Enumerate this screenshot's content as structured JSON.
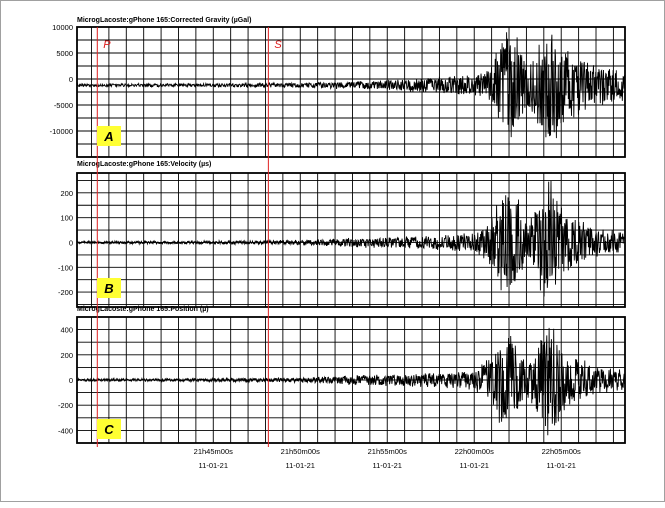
{
  "chart_data": [
    {
      "type": "line",
      "title": "MicrogLacoste:gPhone 165:Corrected Gravity (µGal)",
      "ylim": [
        -15000,
        10000
      ],
      "yticks": [
        10000,
        5000,
        0,
        -5000,
        -10000
      ],
      "ytick_labels": [
        "10000",
        "5000",
        "0",
        "-5000",
        "-10000"
      ],
      "panel_label": "A",
      "baseline": -1200,
      "noise_amplitude": 200,
      "series": [
        {
          "envelope": [
            [
              "21:37:10",
              250
            ],
            [
              "21:44:00",
              300
            ],
            [
              "21:50:00",
              500
            ],
            [
              "21:53:00",
              700
            ],
            [
              "21:56:00",
              1200
            ],
            [
              "21:58:00",
              1700
            ],
            [
              "22:00:00",
              2000
            ],
            [
              "22:01:00",
              3500
            ],
            [
              "22:01:30",
              9000
            ],
            [
              "22:02:00",
              12000
            ],
            [
              "22:02:30",
              10000
            ],
            [
              "22:03:00",
              4500
            ],
            [
              "22:03:30",
              7000
            ],
            [
              "22:04:00",
              11000
            ],
            [
              "22:04:30",
              12500
            ],
            [
              "22:05:00",
              9000
            ],
            [
              "22:05:30",
              7500
            ],
            [
              "22:06:00",
              6000
            ],
            [
              "22:07:00",
              4000
            ],
            [
              "22:08:00",
              3500
            ],
            [
              "22:08:30",
              3000
            ]
          ]
        }
      ]
    },
    {
      "type": "line",
      "title": "MicrogLacoste:gPhone 165:Velocity (µs)",
      "ylim": [
        -260,
        280
      ],
      "yticks": [
        200,
        100,
        0,
        -100,
        -200
      ],
      "ytick_labels": [
        "200",
        "100",
        "0",
        "-100",
        "-200"
      ],
      "panel_label": "B",
      "baseline": 0,
      "noise_amplitude": 3,
      "series": [
        {
          "envelope": [
            [
              "21:37:10",
              5
            ],
            [
              "21:44:00",
              6
            ],
            [
              "21:50:00",
              10
            ],
            [
              "21:53:00",
              20
            ],
            [
              "21:56:00",
              25
            ],
            [
              "21:58:00",
              30
            ],
            [
              "22:00:00",
              40
            ],
            [
              "22:01:00",
              100
            ],
            [
              "22:01:30",
              200
            ],
            [
              "22:02:00",
              240
            ],
            [
              "22:02:30",
              200
            ],
            [
              "22:03:00",
              80
            ],
            [
              "22:03:30",
              150
            ],
            [
              "22:04:00",
              240
            ],
            [
              "22:04:30",
              260
            ],
            [
              "22:05:00",
              150
            ],
            [
              "22:05:30",
              120
            ],
            [
              "22:06:00",
              100
            ],
            [
              "22:07:00",
              60
            ],
            [
              "22:08:00",
              50
            ],
            [
              "22:08:30",
              40
            ]
          ]
        }
      ]
    },
    {
      "type": "line",
      "title": "MicrogLacoste:gPhone 165:Position (µ)",
      "ylim": [
        -500,
        500
      ],
      "yticks": [
        400,
        200,
        0,
        -200,
        -400
      ],
      "ytick_labels": [
        "400",
        "200",
        "0",
        "-200",
        "-400"
      ],
      "panel_label": "C",
      "baseline": 0,
      "noise_amplitude": 5,
      "series": [
        {
          "envelope": [
            [
              "21:37:10",
              10
            ],
            [
              "21:44:00",
              12
            ],
            [
              "21:50:00",
              20
            ],
            [
              "21:53:00",
              40
            ],
            [
              "21:56:00",
              50
            ],
            [
              "21:58:00",
              60
            ],
            [
              "22:00:00",
              80
            ],
            [
              "22:01:00",
              200
            ],
            [
              "22:01:30",
              380
            ],
            [
              "22:02:00",
              420
            ],
            [
              "22:02:30",
              300
            ],
            [
              "22:03:00",
              150
            ],
            [
              "22:03:30",
              250
            ],
            [
              "22:04:00",
              450
            ],
            [
              "22:04:30",
              460
            ],
            [
              "22:05:00",
              300
            ],
            [
              "22:05:30",
              220
            ],
            [
              "22:06:00",
              180
            ],
            [
              "22:07:00",
              120
            ],
            [
              "22:08:00",
              90
            ],
            [
              "22:08:30",
              80
            ]
          ]
        }
      ]
    }
  ],
  "x_axis": {
    "range": [
      "21:37:10",
      "22:08:40"
    ],
    "ticks": [
      {
        "time": "21:45:00",
        "label": "21h45m00s",
        "date": "11-01-21"
      },
      {
        "time": "21:50:00",
        "label": "21h50m00s",
        "date": "11-01-21"
      },
      {
        "time": "21:55:00",
        "label": "21h55m00s",
        "date": "11-01-21"
      },
      {
        "time": "22:00:00",
        "label": "22h00m00s",
        "date": "11-01-21"
      },
      {
        "time": "22:05:00",
        "label": "22h05m00s",
        "date": "11-01-21"
      }
    ]
  },
  "phase_markers": [
    {
      "label": "P",
      "time": "21:38:20",
      "color": "#e02020"
    },
    {
      "label": "S",
      "time": "21:48:10",
      "color": "#e02020"
    }
  ],
  "colors": {
    "trace": "#000000",
    "grid": "#000000",
    "marker": "#e02020",
    "label_box": "#ffff33",
    "border": "#000000"
  }
}
